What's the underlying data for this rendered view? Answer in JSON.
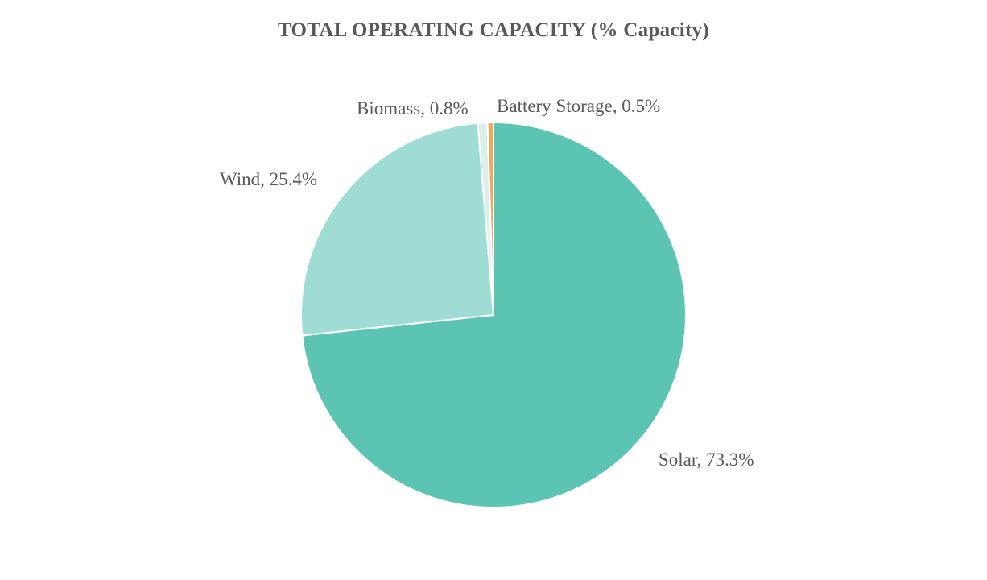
{
  "chart_data": {
    "type": "pie",
    "title": "TOTAL OPERATING CAPACITY (% Capacity)",
    "slices": [
      {
        "name": "Solar",
        "value": 73.3,
        "color": "#5BC4B3",
        "label": "Solar, 73.3%"
      },
      {
        "name": "Wind",
        "value": 25.4,
        "color": "#9FDCD4",
        "label": "Wind, 25.4%"
      },
      {
        "name": "Biomass",
        "value": 0.8,
        "color": "#DCEFEC",
        "label": "Biomass, 0.8%"
      },
      {
        "name": "Battery Storage",
        "value": 0.5,
        "color": "#F0A95C",
        "label": "Battery Storage, 0.5%"
      }
    ],
    "direction": "clockwise",
    "legend": "none",
    "label_color": "#595959",
    "slice_border_color": "#FFFFFF"
  }
}
